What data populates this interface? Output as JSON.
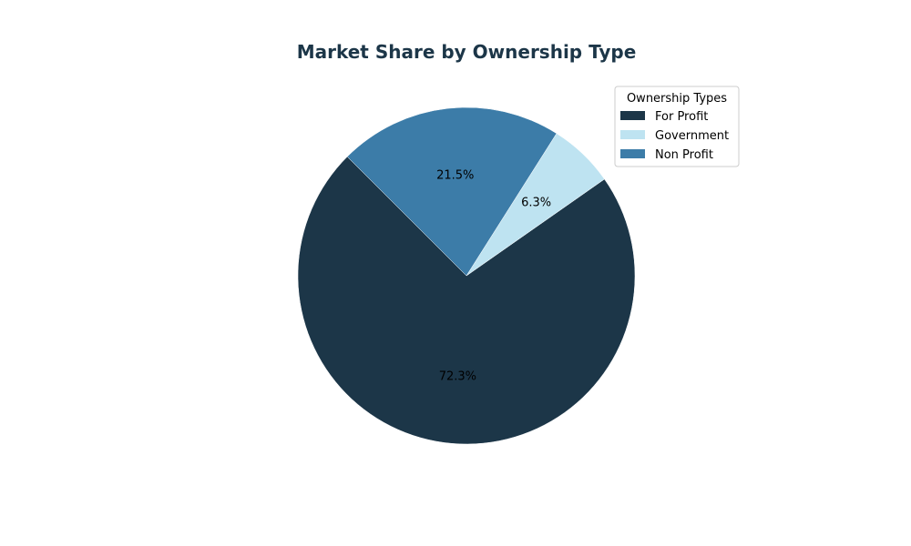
{
  "chart_data": {
    "type": "pie",
    "title": "Market Share by Ownership Type",
    "categories": [
      "For Profit",
      "Government",
      "Non Profit"
    ],
    "values": [
      72.3,
      6.3,
      21.5
    ],
    "labels": [
      "72.3%",
      "6.3%",
      "21.5%"
    ],
    "colors": [
      "#1c3648",
      "#bee3f1",
      "#3c7ca8"
    ],
    "start_angle_deg": 135,
    "direction": "counterclockwise",
    "legend": {
      "title": "Ownership Types",
      "placement": "top-right"
    }
  },
  "style": {
    "title_color": "#1c3648",
    "edge_color": "#ffffff"
  }
}
